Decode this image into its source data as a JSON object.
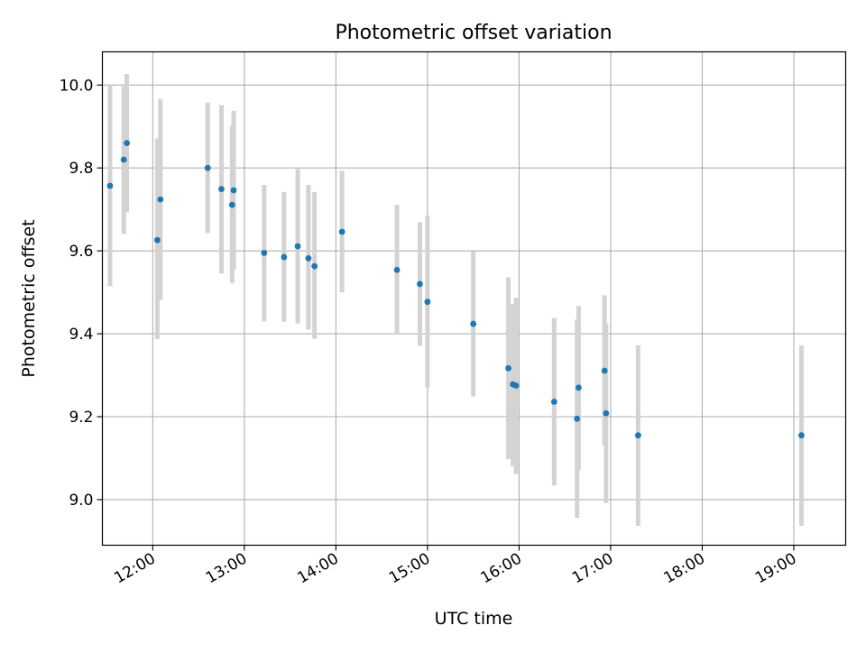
{
  "chart_data": {
    "type": "scatter",
    "title": "Photometric offset variation",
    "xlabel": "UTC time",
    "ylabel": "Photometric offset",
    "x_tick_labels": [
      "12:00",
      "13:00",
      "14:00",
      "15:00",
      "16:00",
      "17:00",
      "18:00",
      "19:00"
    ],
    "y_ticks": [
      9.0,
      9.2,
      9.4,
      9.6,
      9.8,
      10.0
    ],
    "y_tick_labels": [
      "9.0",
      "9.2",
      "9.4",
      "9.6",
      "9.8",
      "10.0"
    ],
    "xlim": [
      "11:27",
      "19:34"
    ],
    "ylim": [
      8.89,
      10.08
    ],
    "grid": true,
    "marker_color": "#1f77b4",
    "errorbar_color": "#d3d3d3",
    "grid_color": "#b0b0b0",
    "points": [
      {
        "x": "11:32",
        "y": 9.757,
        "err_low": 9.515,
        "err_high": 10.0
      },
      {
        "x": "11:41",
        "y": 9.82,
        "err_low": 9.641,
        "err_high": 9.997
      },
      {
        "x": "11:43",
        "y": 9.86,
        "err_low": 9.693,
        "err_high": 10.027
      },
      {
        "x": "12:03",
        "y": 9.626,
        "err_low": 9.387,
        "err_high": 9.871
      },
      {
        "x": "12:05",
        "y": 9.724,
        "err_low": 9.482,
        "err_high": 9.966
      },
      {
        "x": "12:36",
        "y": 9.8,
        "err_low": 9.643,
        "err_high": 9.958
      },
      {
        "x": "12:45",
        "y": 9.749,
        "err_low": 9.545,
        "err_high": 9.952
      },
      {
        "x": "12:52",
        "y": 9.711,
        "err_low": 9.522,
        "err_high": 9.901
      },
      {
        "x": "12:53",
        "y": 9.746,
        "err_low": 9.555,
        "err_high": 9.938
      },
      {
        "x": "13:13",
        "y": 9.595,
        "err_low": 9.43,
        "err_high": 9.759
      },
      {
        "x": "13:26",
        "y": 9.585,
        "err_low": 9.429,
        "err_high": 9.742
      },
      {
        "x": "13:35",
        "y": 9.611,
        "err_low": 9.425,
        "err_high": 9.797
      },
      {
        "x": "13:42",
        "y": 9.582,
        "err_low": 9.41,
        "err_high": 9.759
      },
      {
        "x": "13:46",
        "y": 9.563,
        "err_low": 9.388,
        "err_high": 9.742
      },
      {
        "x": "14:04",
        "y": 9.646,
        "err_low": 9.5,
        "err_high": 9.793
      },
      {
        "x": "14:40",
        "y": 9.554,
        "err_low": 9.398,
        "err_high": 9.711
      },
      {
        "x": "14:55",
        "y": 9.52,
        "err_low": 9.371,
        "err_high": 9.669
      },
      {
        "x": "15:00",
        "y": 9.477,
        "err_low": 9.271,
        "err_high": 9.685
      },
      {
        "x": "15:30",
        "y": 9.424,
        "err_low": 9.249,
        "err_high": 9.599
      },
      {
        "x": "15:53",
        "y": 9.317,
        "err_low": 9.098,
        "err_high": 9.536
      },
      {
        "x": "15:56",
        "y": 9.278,
        "err_low": 9.081,
        "err_high": 9.472
      },
      {
        "x": "15:58",
        "y": 9.275,
        "err_low": 9.062,
        "err_high": 9.487
      },
      {
        "x": "16:23",
        "y": 9.236,
        "err_low": 9.034,
        "err_high": 9.438
      },
      {
        "x": "16:38",
        "y": 9.195,
        "err_low": 8.956,
        "err_high": 9.434
      },
      {
        "x": "16:39",
        "y": 9.27,
        "err_low": 9.071,
        "err_high": 9.467
      },
      {
        "x": "16:56",
        "y": 9.311,
        "err_low": 9.131,
        "err_high": 9.493
      },
      {
        "x": "16:57",
        "y": 9.208,
        "err_low": 8.992,
        "err_high": 9.424
      },
      {
        "x": "17:18",
        "y": 9.155,
        "err_low": 8.937,
        "err_high": 9.372
      },
      {
        "x": "19:05",
        "y": 9.155,
        "err_low": 8.937,
        "err_high": 9.372
      }
    ]
  }
}
